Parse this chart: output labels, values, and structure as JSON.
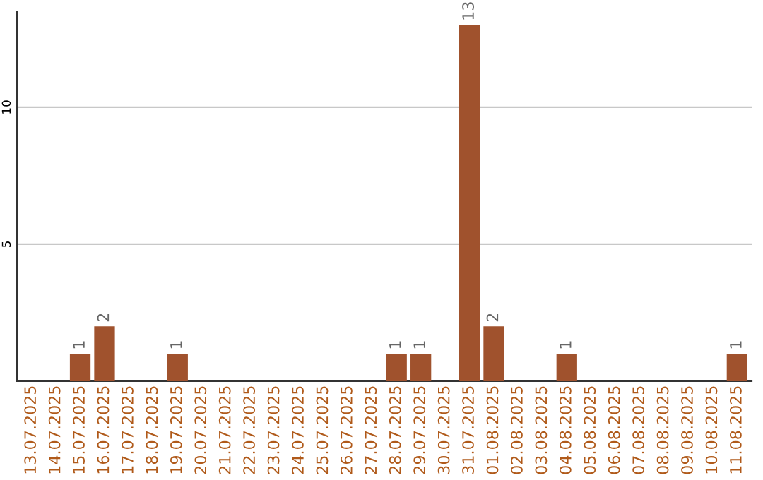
{
  "chart_data": {
    "type": "bar",
    "categories": [
      "13.07.2025",
      "14.07.2025",
      "15.07.2025",
      "16.07.2025",
      "17.07.2025",
      "18.07.2025",
      "19.07.2025",
      "20.07.2025",
      "21.07.2025",
      "22.07.2025",
      "23.07.2025",
      "24.07.2025",
      "25.07.2025",
      "26.07.2025",
      "27.07.2025",
      "28.07.2025",
      "29.07.2025",
      "30.07.2025",
      "31.07.2025",
      "01.08.2025",
      "02.08.2025",
      "03.08.2025",
      "04.08.2025",
      "05.08.2025",
      "06.08.2025",
      "07.08.2025",
      "08.08.2025",
      "09.08.2025",
      "10.08.2025",
      "11.08.2025"
    ],
    "values": [
      0,
      0,
      1,
      2,
      0,
      0,
      1,
      0,
      0,
      0,
      0,
      0,
      0,
      0,
      0,
      1,
      1,
      0,
      13,
      2,
      0,
      0,
      1,
      0,
      0,
      0,
      0,
      0,
      0,
      1
    ],
    "value_labels": [
      null,
      null,
      "1",
      "2",
      null,
      null,
      "1",
      null,
      null,
      null,
      null,
      null,
      null,
      null,
      null,
      "1",
      "1",
      null,
      "13",
      "2",
      null,
      null,
      "1",
      null,
      null,
      null,
      null,
      null,
      null,
      "1"
    ],
    "color": "#a0522d",
    "ylim": [
      0,
      13.5
    ],
    "yticks": [
      5,
      10
    ],
    "grid": "y"
  }
}
